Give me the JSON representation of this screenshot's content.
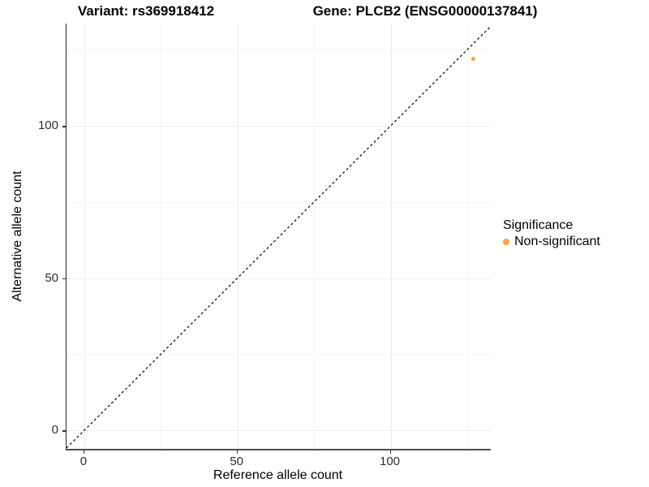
{
  "header": {
    "variant_title": "Variant: rs369918412",
    "gene_title": "Gene: PLCB2 (ENSG00000137841)"
  },
  "legend": {
    "title": "Significance",
    "items": [
      {
        "label": "Non-significant",
        "color": "#F8A542"
      }
    ]
  },
  "chart_data": {
    "type": "scatter",
    "title": "Variant: rs369918412 — Gene: PLCB2 (ENSG00000137841)",
    "xlabel": "Reference allele count",
    "ylabel": "Alternative allele count",
    "xlim": [
      -5.8,
      132.7
    ],
    "ylim": [
      -6.1,
      133.6
    ],
    "x_ticks": [
      0,
      50,
      100
    ],
    "y_ticks": [
      0,
      50,
      100
    ],
    "grid": true,
    "grid_interval_minor": 25,
    "grid_interval_major": 50,
    "legend_position": "right",
    "series": [
      {
        "name": "Non-significant",
        "color": "#F8A542",
        "marker_size": 5,
        "points": [
          {
            "x": 127,
            "y": 122
          }
        ]
      }
    ],
    "reference_line": {
      "kind": "identity",
      "dash": "3,3",
      "color": "#000000"
    }
  },
  "colors": {
    "background": "#FFFFFF",
    "axis_line": "#333333",
    "grid_major": "#ECECEC",
    "grid_minor": "#F5F5F5",
    "tick_label": "#2E2E2E",
    "point": "#F8A542"
  }
}
